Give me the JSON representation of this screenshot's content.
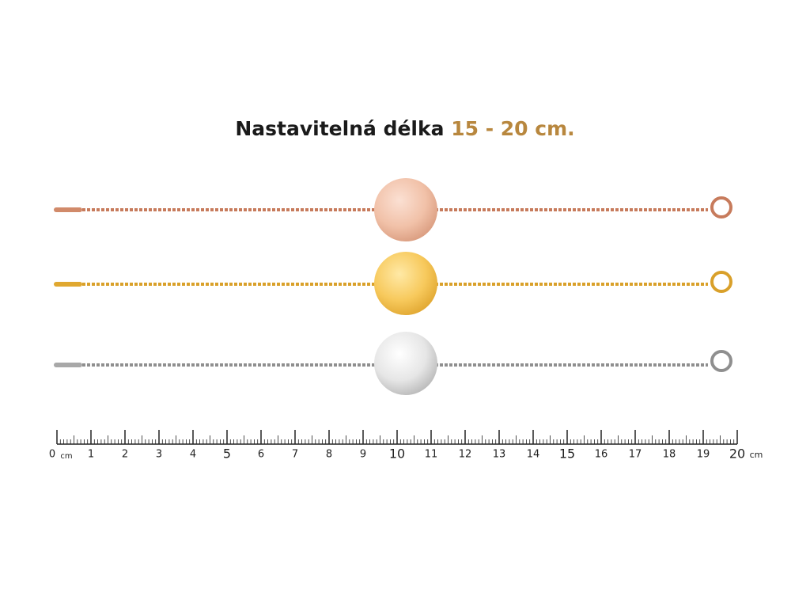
{
  "header": {
    "title": "Nastavitelná délka",
    "highlight": "15 - 20 cm."
  },
  "ruler": {
    "labels": [
      "0",
      "1",
      "2",
      "3",
      "4",
      "5",
      "6",
      "7",
      "8",
      "9",
      "10",
      "11",
      "12",
      "13",
      "14",
      "15",
      "16",
      "17",
      "18",
      "19",
      "20"
    ],
    "unit": "cm"
  }
}
